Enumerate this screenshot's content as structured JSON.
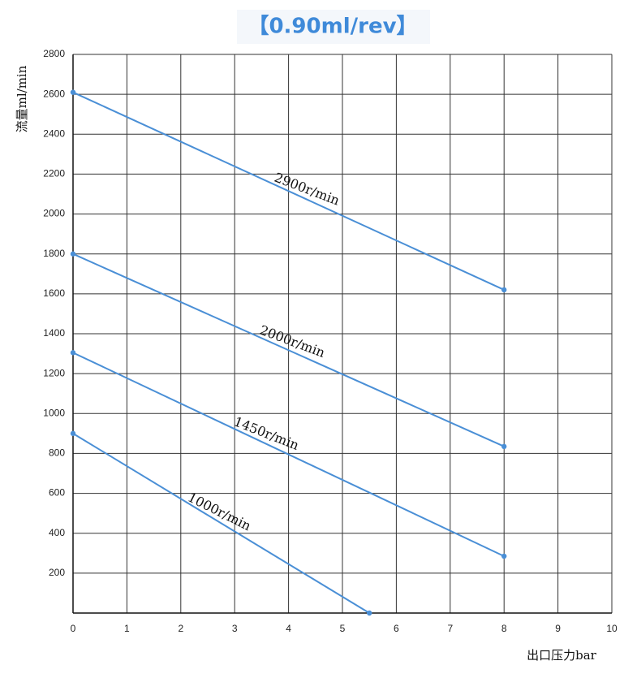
{
  "chart_data": {
    "type": "line",
    "title": "【0.90ml/rev】",
    "x_label": "出口压力bar",
    "y_label": "流量ml/min",
    "xlim": [
      0,
      10
    ],
    "xticks": [
      0,
      1,
      2,
      3,
      4,
      5,
      6,
      7,
      8,
      9,
      10
    ],
    "ylim": [
      0,
      2800
    ],
    "yticks": [
      200,
      400,
      600,
      800,
      1000,
      1200,
      1400,
      1600,
      1800,
      2000,
      2200,
      2400,
      2600,
      2800
    ],
    "grid": true,
    "series": [
      {
        "name": "2900r/min",
        "color": "#4a8fd6",
        "x": [
          0,
          8
        ],
        "values": [
          2610,
          1620
        ]
      },
      {
        "name": "2000r/min",
        "color": "#4a8fd6",
        "x": [
          0,
          8
        ],
        "values": [
          1800,
          835
        ]
      },
      {
        "name": "1450r/min",
        "color": "#4a8fd6",
        "x": [
          0,
          8
        ],
        "values": [
          1305,
          285
        ]
      },
      {
        "name": "1000r/min",
        "color": "#4a8fd6",
        "x": [
          0,
          5.5
        ],
        "values": [
          900,
          0
        ]
      }
    ]
  }
}
